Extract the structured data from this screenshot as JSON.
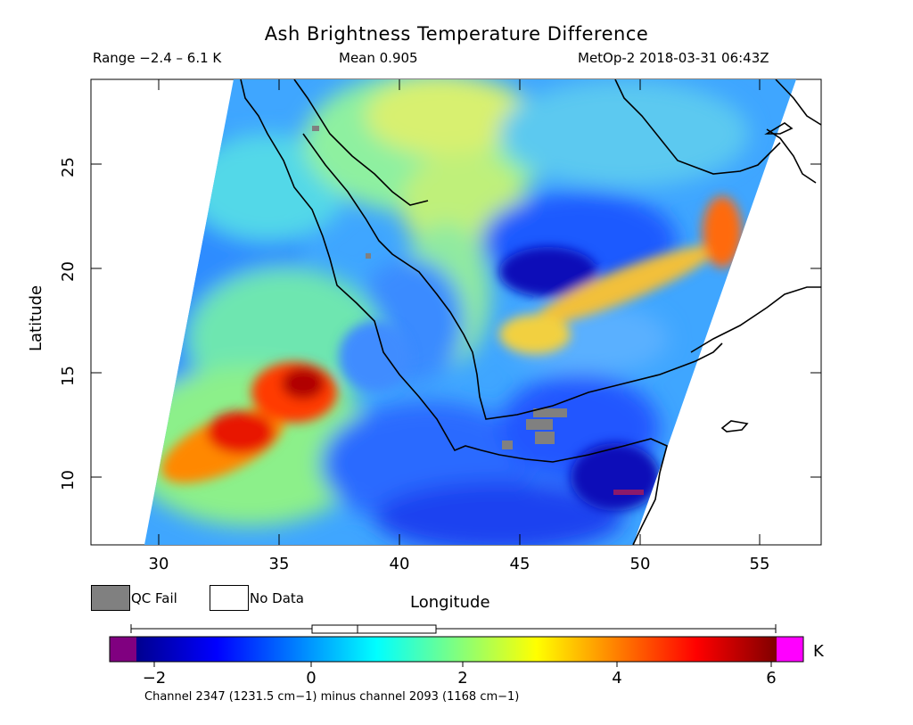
{
  "title": "Ash Brightness Temperature Difference",
  "subtitle": {
    "range": "Range −2.4 – 6.1 K",
    "mean": "Mean 0.905",
    "satellite": "MetOp-2 2018-03-31 06:43Z"
  },
  "axes": {
    "xlabel": "Longitude",
    "ylabel": "Latitude",
    "xticks": [
      "30",
      "35",
      "40",
      "45",
      "50",
      "55"
    ],
    "yticks": [
      "10",
      "15",
      "20",
      "25"
    ]
  },
  "legend": {
    "qc_fail": "QC Fail",
    "no_data": "No Data",
    "qc_color": "#808080"
  },
  "colorbar": {
    "ticks": [
      "−2",
      "0",
      "2",
      "4",
      "6"
    ],
    "unit": "K",
    "caption": "Channel 2347 (1231.5 cm−1) minus channel 2093 (1168 cm−1)",
    "under_color": "#800080",
    "over_color": "#ff00ff"
  },
  "chart_data": {
    "type": "heatmap",
    "title": "Ash Brightness Temperature Difference",
    "xlabel": "Longitude",
    "ylabel": "Latitude",
    "xlim": [
      27,
      57.5
    ],
    "ylim": [
      6.7,
      29
    ],
    "clim": [
      -2.5,
      6.1
    ],
    "range": [
      -2.4,
      6.1
    ],
    "mean": 0.905,
    "units": "K",
    "features": [
      {
        "name": "ash-plume-high",
        "lon": 35.8,
        "lat": 14.5,
        "value": 5.8
      },
      {
        "name": "ash-plume-mid",
        "lon": 33.8,
        "lat": 12.3,
        "value": 5.0
      },
      {
        "name": "ash-plume-edge",
        "lon": 31.5,
        "lat": 11.3,
        "value": 3.8
      },
      {
        "name": "arabia-band-east",
        "lon": 53.6,
        "lat": 21.5,
        "value": 4.2
      },
      {
        "name": "arabia-band-mid",
        "lon": 50.5,
        "lat": 19.3,
        "value": 3.2
      },
      {
        "name": "arabia-band-west",
        "lon": 46.0,
        "lat": 17.2,
        "value": 3.0
      },
      {
        "name": "arabia-negative",
        "lon": 46.3,
        "lat": 19.8,
        "value": -2.0
      },
      {
        "name": "gulf-aden-negative",
        "lon": 48.5,
        "lat": 9.3,
        "value": -2.0
      },
      {
        "name": "north-warm",
        "lon": 42.5,
        "lat": 26.5,
        "value": 2.2
      },
      {
        "name": "red-sea",
        "lon": 40.5,
        "lat": 18.0,
        "value": 0.3
      },
      {
        "name": "sudan",
        "lon": 33.5,
        "lat": 20.5,
        "value": 0.4
      },
      {
        "name": "ethiopia-south",
        "lon": 40.0,
        "lat": 9.0,
        "value": -0.6
      }
    ]
  }
}
